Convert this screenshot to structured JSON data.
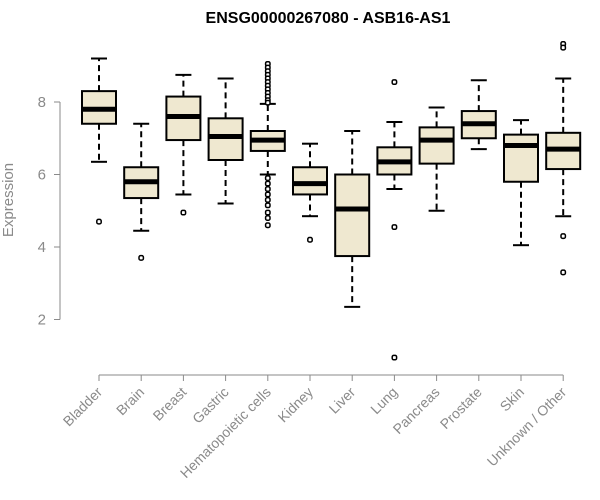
{
  "chart_data": {
    "type": "boxplot",
    "title": "ENSG00000267080 - ASB16-AS1",
    "xlabel": "",
    "ylabel": "Expression",
    "yticks": [
      2,
      4,
      6,
      8
    ],
    "ylim": [
      0.7,
      10.0
    ],
    "box_fill": "#efe8d0",
    "line_color": "#000000",
    "categories": [
      "Bladder",
      "Brain",
      "Breast",
      "Gastric",
      "Hematopoietic cells",
      "Kidney",
      "Liver",
      "Lung",
      "Pancreas",
      "Prostate",
      "Skin",
      "Unknown / Other"
    ],
    "boxes": [
      {
        "q1": 7.4,
        "median": 7.8,
        "q3": 8.3,
        "whisker_low": 6.35,
        "whisker_high": 9.2,
        "outliers": [
          4.7
        ]
      },
      {
        "q1": 5.35,
        "median": 5.8,
        "q3": 6.2,
        "whisker_low": 4.45,
        "whisker_high": 7.4,
        "outliers": [
          3.7
        ]
      },
      {
        "q1": 6.95,
        "median": 7.6,
        "q3": 8.15,
        "whisker_low": 5.45,
        "whisker_high": 8.75,
        "outliers": [
          4.95
        ]
      },
      {
        "q1": 6.4,
        "median": 7.05,
        "q3": 7.55,
        "whisker_low": 5.2,
        "whisker_high": 8.65,
        "outliers": []
      },
      {
        "q1": 6.65,
        "median": 6.95,
        "q3": 7.2,
        "whisker_low": 6.0,
        "whisker_high": 7.95,
        "outliers": [
          9.05,
          8.95,
          8.85,
          8.75,
          8.65,
          8.55,
          8.45,
          8.35,
          8.25,
          8.15,
          8.05,
          7.98,
          5.9,
          5.75,
          5.6,
          5.45,
          5.3,
          5.15,
          4.95,
          4.8,
          4.6
        ]
      },
      {
        "q1": 5.45,
        "median": 5.75,
        "q3": 6.2,
        "whisker_low": 4.85,
        "whisker_high": 6.85,
        "outliers": [
          4.2
        ]
      },
      {
        "q1": 3.75,
        "median": 5.05,
        "q3": 6.0,
        "whisker_low": 2.35,
        "whisker_high": 7.2,
        "outliers": []
      },
      {
        "q1": 6.0,
        "median": 6.35,
        "q3": 6.75,
        "whisker_low": 5.6,
        "whisker_high": 7.45,
        "outliers": [
          8.55,
          4.55,
          0.95
        ]
      },
      {
        "q1": 6.3,
        "median": 6.95,
        "q3": 7.3,
        "whisker_low": 5.0,
        "whisker_high": 7.85,
        "outliers": []
      },
      {
        "q1": 7.0,
        "median": 7.4,
        "q3": 7.75,
        "whisker_low": 6.7,
        "whisker_high": 8.6,
        "outliers": []
      },
      {
        "q1": 5.8,
        "median": 6.8,
        "q3": 7.1,
        "whisker_low": 4.05,
        "whisker_high": 7.5,
        "outliers": []
      },
      {
        "q1": 6.15,
        "median": 6.7,
        "q3": 7.15,
        "whisker_low": 4.85,
        "whisker_high": 8.65,
        "outliers": [
          9.6,
          9.5,
          4.3,
          3.3
        ]
      }
    ]
  }
}
